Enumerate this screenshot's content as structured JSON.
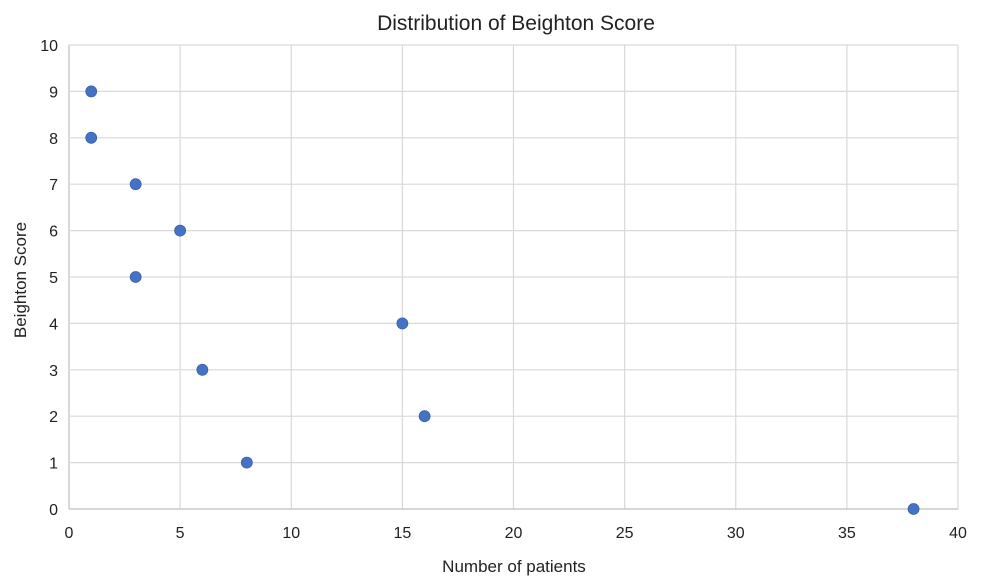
{
  "chart_data": {
    "type": "scatter",
    "title": "Distribution of Beighton Score",
    "xlabel": "Number of patients",
    "ylabel": "Beighton Score",
    "xlim": [
      0,
      40
    ],
    "ylim": [
      0,
      10
    ],
    "x_ticks": [
      0,
      5,
      10,
      15,
      20,
      25,
      30,
      35,
      40
    ],
    "y_ticks": [
      0,
      1,
      2,
      3,
      4,
      5,
      6,
      7,
      8,
      9,
      10
    ],
    "grid": true,
    "legend": "none",
    "marker_color": "#4472C4",
    "series": [
      {
        "points": [
          {
            "x": 38,
            "y": 0
          },
          {
            "x": 8,
            "y": 1
          },
          {
            "x": 16,
            "y": 2
          },
          {
            "x": 6,
            "y": 3
          },
          {
            "x": 15,
            "y": 4
          },
          {
            "x": 3,
            "y": 5
          },
          {
            "x": 5,
            "y": 6
          },
          {
            "x": 3,
            "y": 7
          },
          {
            "x": 1,
            "y": 8
          },
          {
            "x": 1,
            "y": 9
          }
        ]
      }
    ]
  }
}
